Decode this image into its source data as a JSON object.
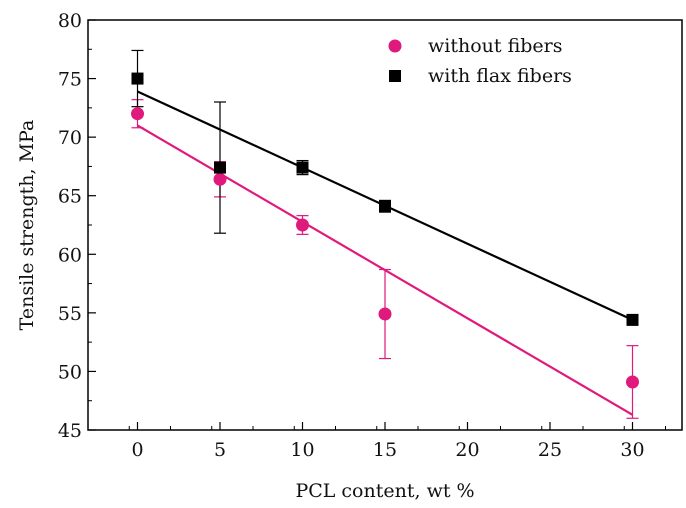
{
  "chart_data": {
    "type": "scatter",
    "xlabel": "PCL content, wt %",
    "ylabel": "Tensile strength, MPa",
    "xlim": [
      -3,
      33
    ],
    "ylim": [
      45,
      80
    ],
    "x_ticks": [
      0,
      5,
      10,
      15,
      20,
      25,
      30
    ],
    "y_ticks": [
      45,
      50,
      55,
      60,
      65,
      70,
      75,
      80
    ],
    "x_tick_labels": [
      "0",
      "5",
      "10",
      "15",
      "20",
      "25",
      "30"
    ],
    "y_tick_labels": [
      "45",
      "50",
      "55",
      "60",
      "65",
      "70",
      "75",
      "80"
    ],
    "legend_position": "top-right",
    "grid": false,
    "series": [
      {
        "name": "without fibers",
        "marker": "circle",
        "color": "#e0197d",
        "points": [
          {
            "x": 0,
            "y": 72.0,
            "err_low": 1.2,
            "err_high": 1.2
          },
          {
            "x": 5,
            "y": 66.4,
            "err_low": 1.5,
            "err_high": 1.5
          },
          {
            "x": 10,
            "y": 62.5,
            "err_low": 0.8,
            "err_high": 0.8
          },
          {
            "x": 15,
            "y": 54.9,
            "err_low": 3.8,
            "err_high": 3.8
          },
          {
            "x": 30,
            "y": 49.1,
            "err_low": 3.1,
            "err_high": 3.1
          }
        ],
        "fit": {
          "x": [
            0,
            30
          ],
          "y": [
            71.0,
            46.3
          ]
        }
      },
      {
        "name": "with flax fibers",
        "marker": "square",
        "color": "#000000",
        "points": [
          {
            "x": 0,
            "y": 75.0,
            "err_low": 2.4,
            "err_high": 2.4
          },
          {
            "x": 5,
            "y": 67.4,
            "err_low": 5.6,
            "err_high": 5.6
          },
          {
            "x": 10,
            "y": 67.4,
            "err_low": 0.6,
            "err_high": 0.6
          },
          {
            "x": 15,
            "y": 64.1,
            "err_low": 0.5,
            "err_high": 0.5
          },
          {
            "x": 30,
            "y": 54.4,
            "err_low": 0.3,
            "err_high": 0.3
          }
        ],
        "fit": {
          "x": [
            0,
            30
          ],
          "y": [
            73.9,
            54.4
          ]
        }
      }
    ]
  }
}
